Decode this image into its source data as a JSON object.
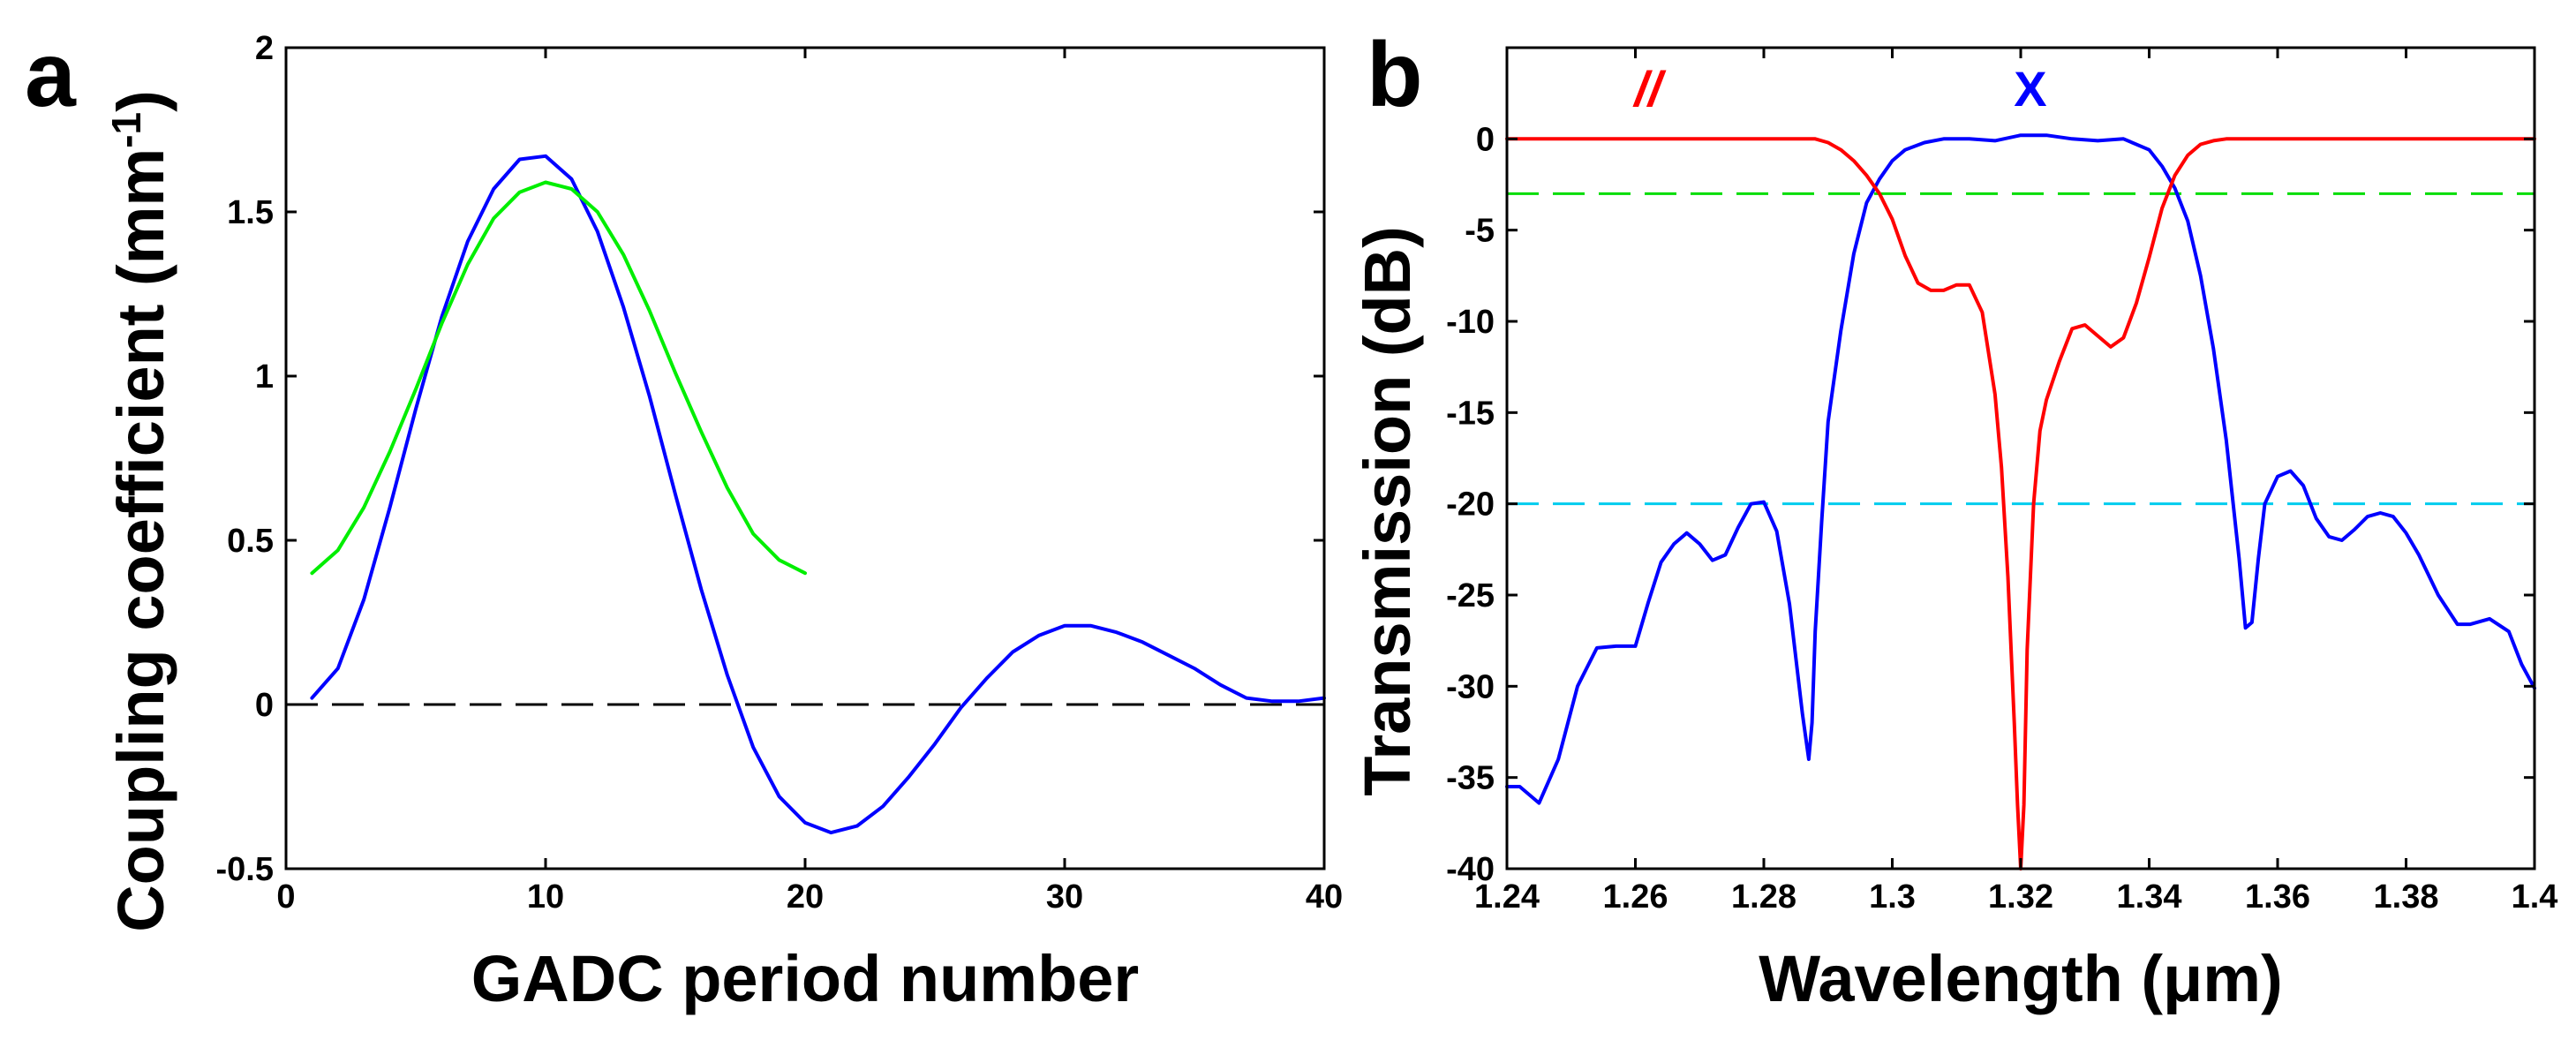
{
  "chart_data": [
    {
      "panel": "a",
      "type": "line",
      "xlabel": "GADC period number",
      "ylabel": "Coupling coefficient (mm",
      "ylabel_sup": "-1",
      "ylabel_end": ")",
      "xlim": [
        0,
        40
      ],
      "ylim": [
        -0.5,
        2
      ],
      "xticks": [
        0,
        10,
        20,
        30,
        40
      ],
      "xtick_labels": [
        "0",
        "10",
        "20",
        "30",
        "40"
      ],
      "yticks": [
        -0.5,
        0,
        0.5,
        1,
        1.5,
        2
      ],
      "ytick_labels": [
        "-0.5",
        "0",
        "0.5",
        "1",
        "1.5",
        "2"
      ],
      "reference_lines": [
        {
          "name": "zero-reference",
          "y": 0,
          "color": "#000000",
          "dashed": true
        }
      ],
      "series": [
        {
          "name": "blue",
          "color": "#0000ff",
          "x": [
            1,
            2,
            3,
            4,
            5,
            6,
            7,
            8,
            9,
            10,
            11,
            12,
            13,
            14,
            15,
            16,
            17,
            18,
            19,
            20,
            21,
            22,
            23,
            24,
            25,
            26,
            27,
            28,
            29,
            30,
            31,
            32,
            33,
            34,
            35,
            36,
            37,
            38,
            39,
            40
          ],
          "y": [
            0.02,
            0.11,
            0.32,
            0.6,
            0.9,
            1.18,
            1.41,
            1.57,
            1.66,
            1.67,
            1.6,
            1.44,
            1.21,
            0.94,
            0.64,
            0.35,
            0.09,
            -0.13,
            -0.28,
            -0.36,
            -0.39,
            -0.37,
            -0.31,
            -0.22,
            -0.12,
            -0.01,
            0.08,
            0.16,
            0.21,
            0.24,
            0.24,
            0.22,
            0.19,
            0.15,
            0.11,
            0.06,
            0.02,
            0.01,
            0.01,
            0.02
          ]
        },
        {
          "name": "green",
          "color": "#00ee00",
          "x": [
            1,
            2,
            3,
            4,
            5,
            6,
            7,
            8,
            9,
            10,
            11,
            12,
            13,
            14,
            15,
            16,
            17,
            18,
            19,
            20
          ],
          "y": [
            0.4,
            0.47,
            0.6,
            0.77,
            0.96,
            1.16,
            1.34,
            1.48,
            1.56,
            1.59,
            1.57,
            1.5,
            1.37,
            1.2,
            1.01,
            0.83,
            0.66,
            0.52,
            0.44,
            0.4
          ]
        }
      ]
    },
    {
      "panel": "b",
      "type": "line",
      "xlabel": "Wavelength (μm)",
      "ylabel": "Transmission (dB)",
      "xlim": [
        1.24,
        1.4
      ],
      "ylim": [
        -40,
        5
      ],
      "xticks": [
        1.24,
        1.26,
        1.28,
        1.3,
        1.32,
        1.34,
        1.36,
        1.38,
        1.4
      ],
      "xtick_labels": [
        "1.24",
        "1.26",
        "1.28",
        "1.3",
        "1.32",
        "1.34",
        "1.36",
        "1.38",
        "1.4"
      ],
      "yticks": [
        -40,
        -35,
        -30,
        -25,
        -20,
        -15,
        -10,
        -5,
        0
      ],
      "ytick_labels": [
        "-40",
        "-35",
        "-30",
        "-25",
        "-20",
        "-15",
        "-10",
        "-5",
        "0"
      ],
      "reference_lines": [
        {
          "name": "minus-3db-reference",
          "y": -3,
          "color": "#00dd00",
          "dashed": true
        },
        {
          "name": "minus-20db-reference",
          "y": -20,
          "color": "#00ccee",
          "dashed": true
        }
      ],
      "annotations": [
        {
          "name": "parallel-label",
          "text": "//",
          "x": 1.262,
          "y": 1.8,
          "color": "#ff0000"
        },
        {
          "name": "cross-label",
          "text": "X",
          "x": 1.3215,
          "y": 1.8,
          "color": "#0000ff"
        }
      ],
      "series": [
        {
          "name": "X",
          "color": "#0000ff",
          "x": [
            1.24,
            1.242,
            1.245,
            1.248,
            1.251,
            1.254,
            1.257,
            1.26,
            1.262,
            1.264,
            1.266,
            1.268,
            1.27,
            1.272,
            1.274,
            1.276,
            1.278,
            1.28,
            1.282,
            1.284,
            1.285,
            1.286,
            1.287,
            1.2875,
            1.288,
            1.289,
            1.29,
            1.292,
            1.294,
            1.296,
            1.298,
            1.3,
            1.302,
            1.305,
            1.308,
            1.312,
            1.316,
            1.32,
            1.324,
            1.328,
            1.332,
            1.336,
            1.34,
            1.342,
            1.344,
            1.346,
            1.348,
            1.35,
            1.352,
            1.354,
            1.355,
            1.356,
            1.357,
            1.358,
            1.36,
            1.362,
            1.364,
            1.366,
            1.368,
            1.37,
            1.372,
            1.374,
            1.376,
            1.378,
            1.38,
            1.382,
            1.385,
            1.388,
            1.39,
            1.393,
            1.396,
            1.398,
            1.4
          ],
          "y": [
            -35.5,
            -35.5,
            -36.4,
            -34,
            -30,
            -27.9,
            -27.8,
            -27.8,
            -25.4,
            -23.2,
            -22.2,
            -21.6,
            -22.2,
            -23.1,
            -22.8,
            -21.3,
            -20.0,
            -19.9,
            -21.5,
            -25.5,
            -28.5,
            -31.5,
            -34.0,
            -32.0,
            -27.0,
            -21.0,
            -15.5,
            -10.5,
            -6.3,
            -3.5,
            -2.2,
            -1.2,
            -0.6,
            -0.2,
            0.0,
            0.0,
            -0.1,
            0.2,
            0.2,
            0.0,
            -0.1,
            0.0,
            -0.6,
            -1.5,
            -2.7,
            -4.5,
            -7.5,
            -11.5,
            -16.5,
            -23.0,
            -26.8,
            -26.5,
            -23.0,
            -20.0,
            -18.5,
            -18.2,
            -19.0,
            -20.8,
            -21.8,
            -22.0,
            -21.4,
            -20.7,
            -20.5,
            -20.7,
            -21.6,
            -22.8,
            -25.0,
            -26.6,
            -26.6,
            -26.3,
            -27.0,
            -28.8,
            -30.1
          ]
        },
        {
          "name": "//",
          "color": "#ff0000",
          "x": [
            1.24,
            1.288,
            1.29,
            1.292,
            1.294,
            1.296,
            1.298,
            1.3,
            1.302,
            1.304,
            1.306,
            1.308,
            1.31,
            1.312,
            1.314,
            1.316,
            1.317,
            1.318,
            1.319,
            1.3195,
            1.32,
            1.3205,
            1.321,
            1.322,
            1.323,
            1.324,
            1.326,
            1.328,
            1.33,
            1.332,
            1.334,
            1.336,
            1.338,
            1.34,
            1.342,
            1.344,
            1.346,
            1.348,
            1.35,
            1.352,
            1.355,
            1.4
          ],
          "y": [
            0.0,
            0.0,
            -0.2,
            -0.6,
            -1.2,
            -2.0,
            -3.0,
            -4.4,
            -6.4,
            -7.9,
            -8.3,
            -8.3,
            -8.0,
            -8.0,
            -9.5,
            -14.0,
            -18.0,
            -24.0,
            -32.0,
            -36.5,
            -40.0,
            -36.5,
            -28.0,
            -20.0,
            -16.0,
            -14.3,
            -12.2,
            -10.4,
            -10.2,
            -10.8,
            -11.4,
            -10.9,
            -9.0,
            -6.5,
            -3.8,
            -2.0,
            -0.9,
            -0.3,
            -0.1,
            0.0,
            0.0,
            0.0
          ]
        }
      ]
    }
  ]
}
